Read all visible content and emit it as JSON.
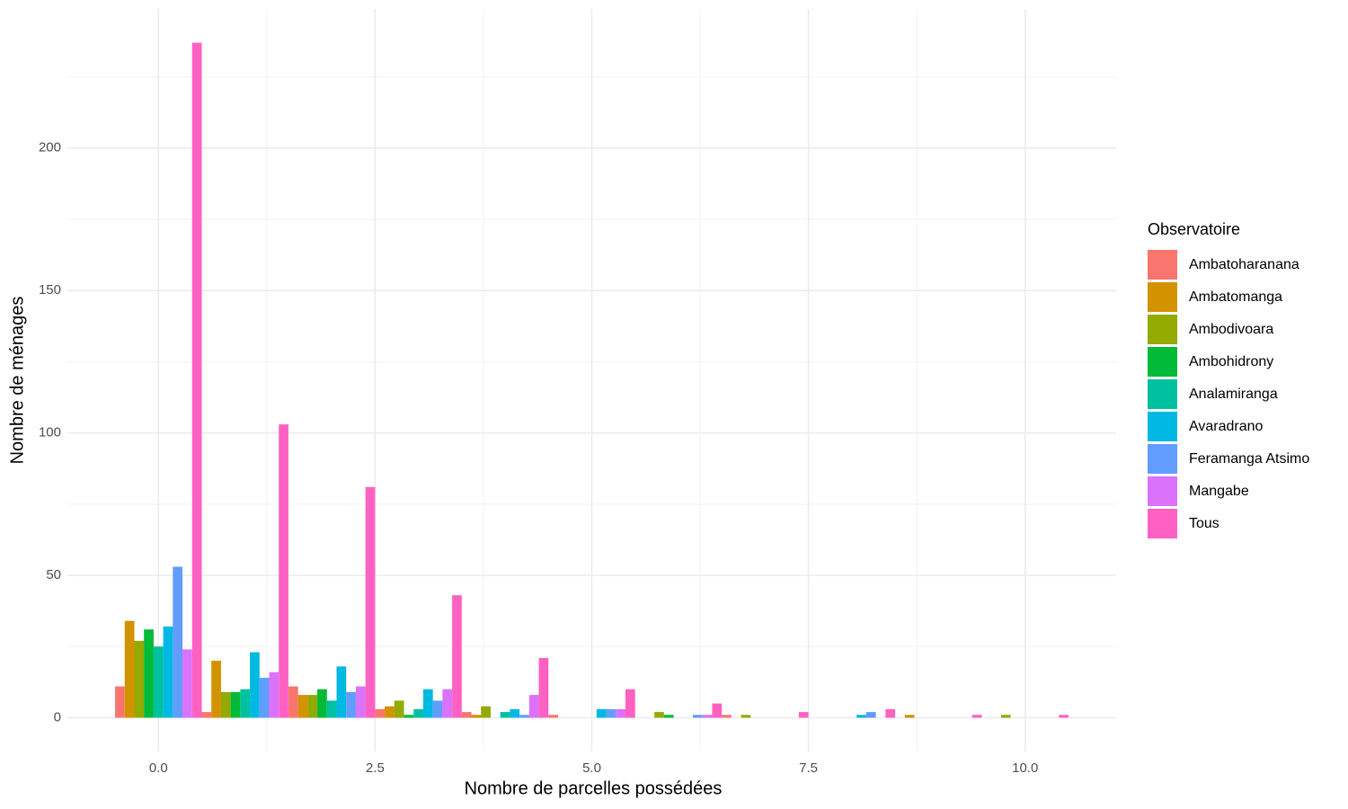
{
  "chart_data": {
    "type": "histogram",
    "x_label": "Nombre de parcelles possédées",
    "y_label": "Nombre de ménages",
    "legend_title": "Observatoire",
    "legend_position": "right",
    "bins": [
      -0.5,
      0.5,
      1.5,
      2.5,
      3.5,
      4.5,
      5.5,
      6.5,
      7.5,
      8.5,
      9.5,
      10.5
    ],
    "series": [
      {
        "name": "Ambatoharanana",
        "color": "#F8766D",
        "values": [
          11,
          2,
          11,
          3,
          2,
          1,
          0,
          1,
          0,
          0,
          0
        ]
      },
      {
        "name": "Ambatomanga",
        "color": "#D39200",
        "values": [
          34,
          20,
          8,
          4,
          1,
          0,
          0,
          0,
          0,
          1,
          0
        ]
      },
      {
        "name": "Ambodivoara",
        "color": "#93AA00",
        "values": [
          27,
          9,
          8,
          6,
          4,
          0,
          2,
          1,
          0,
          0,
          1
        ]
      },
      {
        "name": "Ambohidrony",
        "color": "#00BA38",
        "values": [
          31,
          9,
          10,
          1,
          0,
          0,
          1,
          0,
          0,
          0,
          0
        ]
      },
      {
        "name": "Analamiranga",
        "color": "#00C19F",
        "values": [
          25,
          10,
          6,
          3,
          2,
          0,
          0,
          0,
          0,
          0,
          0
        ]
      },
      {
        "name": "Avaradrano",
        "color": "#00B9E3",
        "values": [
          32,
          23,
          18,
          10,
          3,
          3,
          0,
          0,
          1,
          0,
          0
        ]
      },
      {
        "name": "Feramanga Atsimo",
        "color": "#619CFF",
        "values": [
          53,
          14,
          9,
          6,
          1,
          3,
          1,
          0,
          2,
          0,
          0
        ]
      },
      {
        "name": "Mangabe",
        "color": "#DB72FB",
        "values": [
          24,
          16,
          11,
          10,
          8,
          3,
          1,
          0,
          0,
          0,
          0
        ]
      },
      {
        "name": "Tous",
        "color": "#FF61C3",
        "values": [
          237,
          103,
          81,
          43,
          21,
          10,
          5,
          2,
          3,
          1,
          1
        ]
      }
    ],
    "xlim": [
      -1.05,
      11.05
    ],
    "ylim": [
      -11.85,
      248.85
    ],
    "xticks": [
      {
        "value": 0,
        "label": "0.0"
      },
      {
        "value": 2.5,
        "label": "2.5"
      },
      {
        "value": 5,
        "label": "5.0"
      },
      {
        "value": 7.5,
        "label": "7.5"
      },
      {
        "value": 10,
        "label": "10.0"
      }
    ],
    "yticks": [
      0,
      50,
      100,
      150,
      200
    ],
    "grid": true,
    "minor_grid": true
  }
}
